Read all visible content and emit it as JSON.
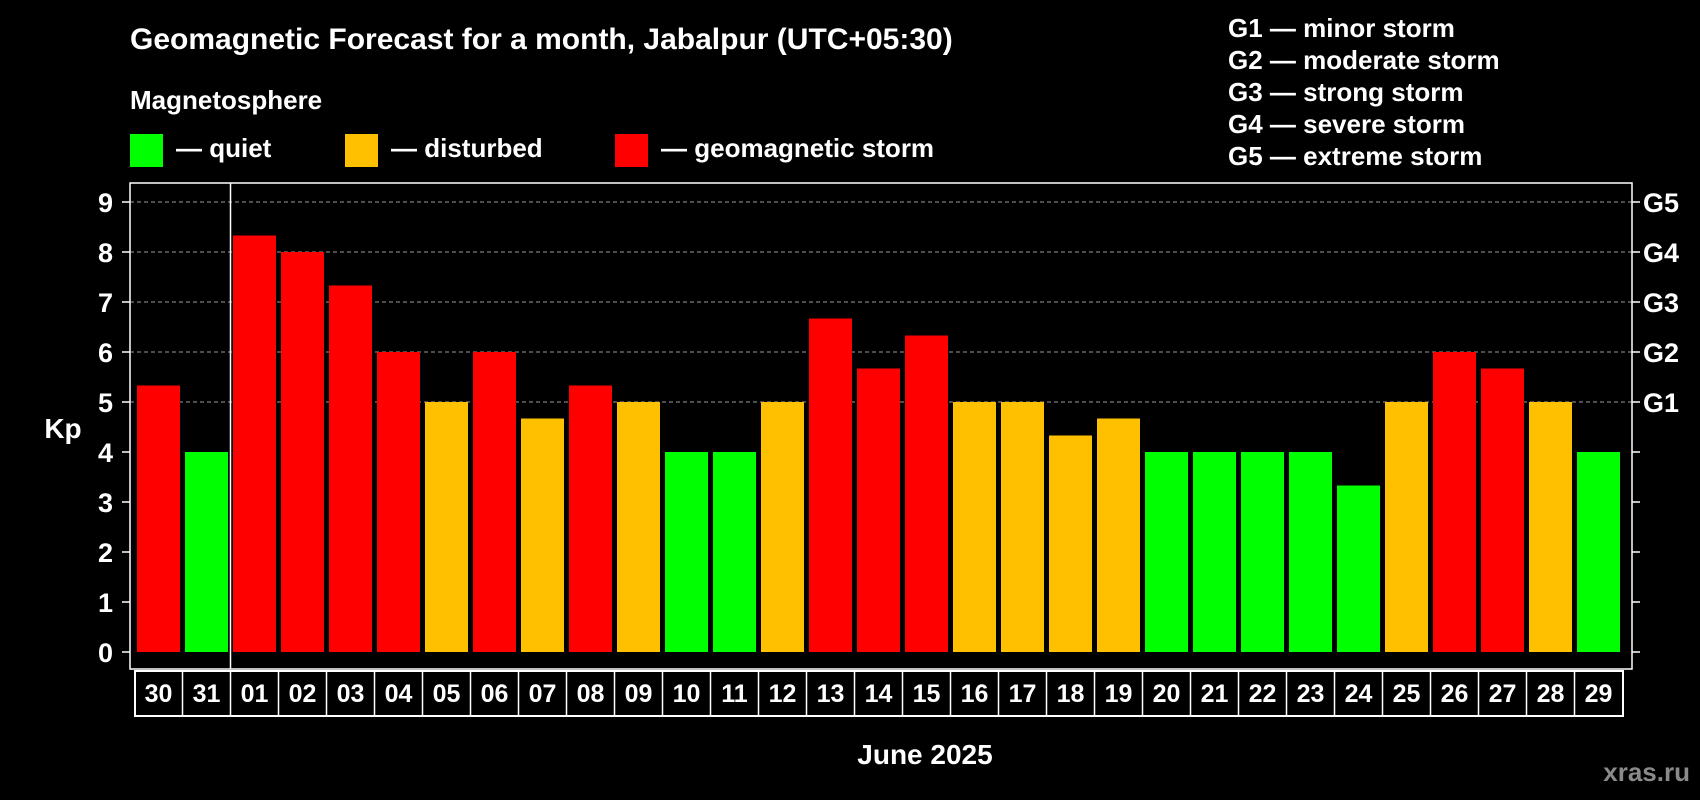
{
  "header": {
    "title": "Geomagnetic Forecast for a month, Jabalpur (UTC+05:30)",
    "legend_heading": "Magnetosphere",
    "status_legend": [
      {
        "label": "— quiet",
        "color": "#00ff00"
      },
      {
        "label": "— disturbed",
        "color": "#ffc000"
      },
      {
        "label": "— geomagnetic storm",
        "color": "#ff0000"
      }
    ],
    "storm_scale": [
      "G1 — minor storm",
      "G2 — moderate storm",
      "G3 — strong storm",
      "G4 — severe storm",
      "G5 — extreme storm"
    ]
  },
  "watermark": "xras.ru",
  "chart_data": {
    "type": "bar",
    "title": "Geomagnetic Forecast for a month, Jabalpur (UTC+05:30)",
    "ylabel": "Kp",
    "xlabel": "June 2025",
    "ylim": [
      0,
      9
    ],
    "y_ticks": [
      "0",
      "1",
      "2",
      "3",
      "4",
      "5",
      "6",
      "7",
      "8",
      "9"
    ],
    "right_ticks": [
      {
        "value": 5,
        "label": "G1"
      },
      {
        "value": 6,
        "label": "G2"
      },
      {
        "value": 7,
        "label": "G3"
      },
      {
        "value": 8,
        "label": "G4"
      },
      {
        "value": 9,
        "label": "G5"
      }
    ],
    "grid_levels": [
      5,
      6,
      7,
      8,
      9
    ],
    "categories": [
      "30",
      "31",
      "01",
      "02",
      "03",
      "04",
      "05",
      "06",
      "07",
      "08",
      "09",
      "10",
      "11",
      "12",
      "13",
      "14",
      "15",
      "16",
      "17",
      "18",
      "19",
      "20",
      "21",
      "22",
      "23",
      "24",
      "25",
      "26",
      "27",
      "28",
      "29"
    ],
    "values": [
      5.33,
      4.0,
      8.33,
      8.0,
      7.33,
      6.0,
      5.0,
      6.0,
      4.67,
      5.33,
      5.0,
      4.0,
      4.0,
      5.0,
      6.67,
      5.67,
      6.33,
      5.0,
      5.0,
      4.33,
      4.67,
      4.0,
      4.0,
      4.0,
      4.0,
      3.33,
      5.0,
      6.0,
      5.67,
      5.0,
      4.0
    ],
    "status": [
      "storm",
      "quiet",
      "storm",
      "storm",
      "storm",
      "storm",
      "disturbed",
      "storm",
      "disturbed",
      "storm",
      "disturbed",
      "quiet",
      "quiet",
      "disturbed",
      "storm",
      "storm",
      "storm",
      "disturbed",
      "disturbed",
      "disturbed",
      "disturbed",
      "quiet",
      "quiet",
      "quiet",
      "quiet",
      "quiet",
      "disturbed",
      "storm",
      "storm",
      "disturbed",
      "quiet"
    ],
    "colors": {
      "quiet": "#00ff00",
      "disturbed": "#ffc000",
      "storm": "#ff0000"
    },
    "month_separator_after": "31"
  }
}
